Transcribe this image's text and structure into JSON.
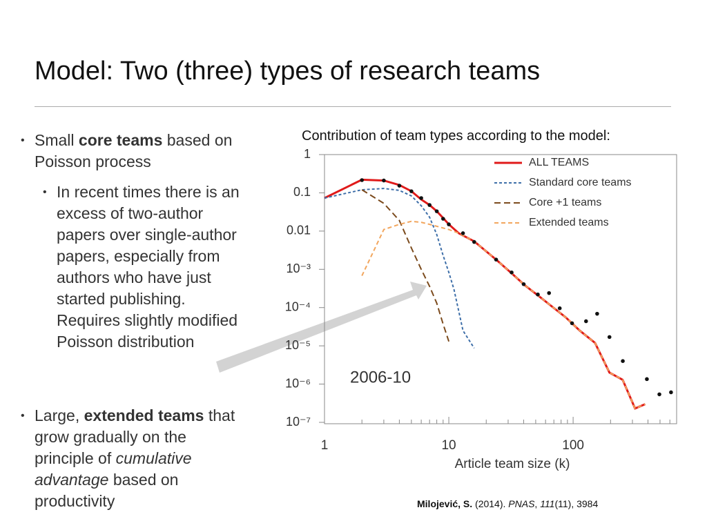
{
  "slide": {
    "title": "Model: Two (three) types of research teams",
    "bullets": [
      {
        "runs": [
          "Small ",
          "core teams",
          " based on Poisson process"
        ]
      },
      {
        "runs": [
          "In recent times there is an excess of two-author papers over single-author papers, especially from authors who have just started publishing. Requires slightly modified Poisson distribution"
        ]
      },
      {
        "runs": [
          "Large, ",
          "extended teams",
          " that grow gradually on the principle of ",
          "cumulative advantage",
          " based on productivity"
        ]
      }
    ],
    "chart_caption": "Contribution of team types according to the model:",
    "citation": [
      "Milojević, S.",
      " (2014). ",
      "PNAS",
      ", ",
      "111",
      "(11), 3984"
    ]
  },
  "chart_data": {
    "type": "line",
    "xlabel": "Article team size (k)",
    "annotation": "2006-10",
    "log_x": true,
    "log_y": true,
    "xlim": [
      1,
      680
    ],
    "ylim": [
      1e-07,
      1
    ],
    "xticks": [
      1,
      10,
      100
    ],
    "yticks": [
      1,
      0.1,
      0.01,
      {
        "value": 0.001,
        "label": "10⁻³"
      },
      {
        "value": 0.0001,
        "label": "10⁻⁴"
      },
      {
        "value": 1e-05,
        "label": "10⁻⁵"
      },
      {
        "value": 1e-06,
        "label": "10⁻⁶"
      },
      {
        "value": 1e-07,
        "label": "10⁻⁷"
      }
    ],
    "legend": "upper right",
    "series": [
      {
        "name": "ALL TEAMS",
        "color": "#e01a1a",
        "dash": "none",
        "x": [
          1,
          2,
          3,
          4,
          5,
          6,
          7,
          8,
          9,
          10,
          12,
          16,
          24,
          32,
          41,
          52,
          68,
          87,
          113,
          150,
          196,
          250,
          315,
          380
        ],
        "values": [
          0.073,
          0.22,
          0.21,
          0.16,
          0.11,
          0.067,
          0.048,
          0.033,
          0.022,
          0.015,
          0.0088,
          0.0054,
          0.0018,
          0.00079,
          0.00038,
          0.00021,
          0.000105,
          5.6e-05,
          2.5e-05,
          1.2e-05,
          2e-06,
          1.3e-06,
          2.3e-07,
          3e-07
        ]
      },
      {
        "name": "Standard core teams",
        "color": "#3d6ea8",
        "dash": "4 3",
        "x": [
          1,
          2,
          3,
          4,
          5,
          6,
          7,
          8,
          9,
          10,
          11,
          13,
          16
        ],
        "values": [
          0.073,
          0.12,
          0.13,
          0.116,
          0.083,
          0.046,
          0.023,
          0.0081,
          0.0023,
          0.00083,
          0.0003,
          2.5e-05,
          8.7e-06
        ]
      },
      {
        "name": "Core +1 teams",
        "color": "#7b4a1c",
        "dash": "9 5",
        "x": [
          2,
          3,
          4,
          5,
          6,
          7,
          8,
          9,
          10
        ],
        "values": [
          0.12,
          0.053,
          0.019,
          0.0036,
          0.001,
          0.00036,
          0.00013,
          3.7e-05,
          1.3e-05
        ]
      },
      {
        "name": "Extended teams",
        "color": "#f2a65e",
        "dash": "6 4",
        "x": [
          2,
          3,
          4,
          5,
          6,
          7,
          10,
          12,
          16,
          24,
          32,
          41,
          52,
          68,
          87,
          113,
          150,
          196,
          250,
          315,
          380
        ],
        "values": [
          0.00068,
          0.011,
          0.015,
          0.018,
          0.017,
          0.015,
          0.011,
          0.0088,
          0.0054,
          0.0018,
          0.00079,
          0.00038,
          0.00021,
          0.000105,
          5.6e-05,
          2.5e-05,
          1.2e-05,
          2e-06,
          1.3e-06,
          2.3e-07,
          3e-07
        ]
      }
    ],
    "points": {
      "color": "#111111",
      "x": [
        2,
        3,
        4,
        5,
        6,
        7,
        8,
        9,
        10,
        13,
        16,
        24,
        32,
        40,
        52,
        64,
        78,
        98,
        127,
        156,
        196,
        251,
        392,
        494,
        613
      ],
      "values": [
        0.215,
        0.21,
        0.154,
        0.11,
        0.073,
        0.048,
        0.033,
        0.021,
        0.015,
        0.0088,
        0.0052,
        0.0018,
        0.00083,
        0.00041,
        0.00022,
        0.00024,
        9.6e-05,
        3.9e-05,
        4.4e-05,
        6.9e-05,
        1.7e-05,
        4e-06,
        1.35e-06,
        5.4e-07,
        6.1e-07
      ]
    }
  }
}
